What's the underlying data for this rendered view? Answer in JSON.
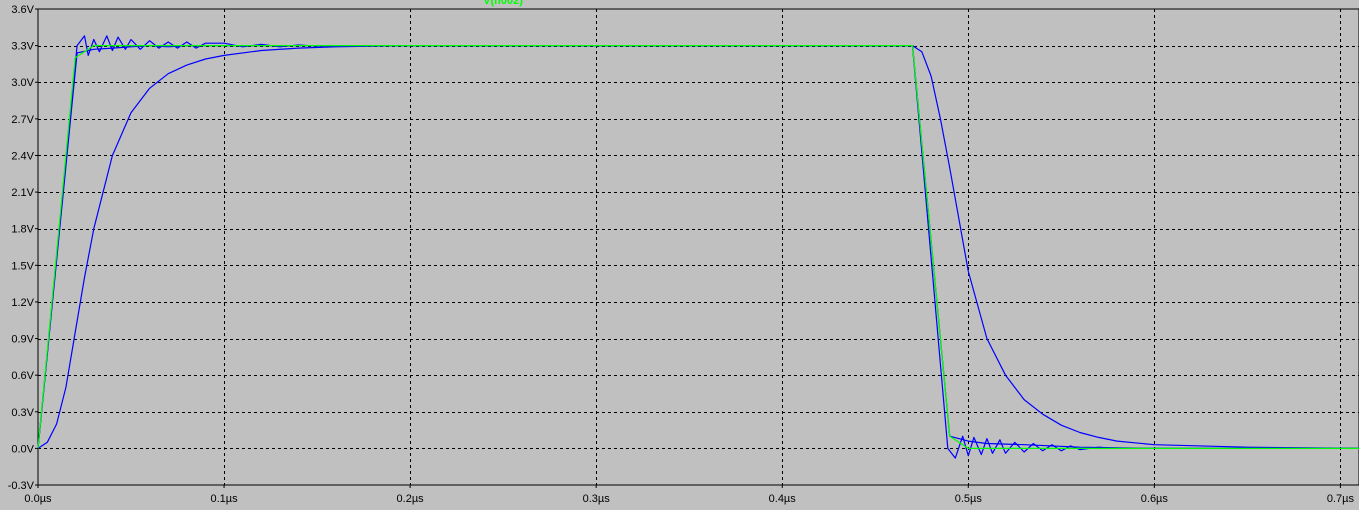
{
  "chart_data": {
    "type": "line",
    "title": "",
    "xlabel": "",
    "ylabel": "",
    "xlim": [
      0.0,
      0.71
    ],
    "ylim": [
      -0.3,
      3.6
    ],
    "grid": true,
    "x_ticks": [
      {
        "value": 0.0,
        "label": "0.0µs"
      },
      {
        "value": 0.1,
        "label": "0.1µs"
      },
      {
        "value": 0.2,
        "label": "0.2µs"
      },
      {
        "value": 0.3,
        "label": "0.3µs"
      },
      {
        "value": 0.4,
        "label": "0.4µs"
      },
      {
        "value": 0.5,
        "label": "0.5µs"
      },
      {
        "value": 0.6,
        "label": "0.6µs"
      },
      {
        "value": 0.7,
        "label": "0.7µs"
      }
    ],
    "y_ticks": [
      {
        "value": 3.6,
        "label": "3.6V"
      },
      {
        "value": 3.3,
        "label": "3.3V"
      },
      {
        "value": 3.0,
        "label": "3.0V"
      },
      {
        "value": 2.7,
        "label": "2.7V"
      },
      {
        "value": 2.4,
        "label": "2.4V"
      },
      {
        "value": 2.1,
        "label": "2.1V"
      },
      {
        "value": 1.8,
        "label": "1.8V"
      },
      {
        "value": 1.5,
        "label": "1.5V"
      },
      {
        "value": 1.2,
        "label": "1.2V"
      },
      {
        "value": 0.9,
        "label": "0.9V"
      },
      {
        "value": 0.6,
        "label": "0.6V"
      },
      {
        "value": 0.3,
        "label": "0.3V"
      },
      {
        "value": 0.0,
        "label": "0.0V"
      },
      {
        "value": -0.3,
        "label": "-0.3V"
      }
    ],
    "legend": [
      {
        "name": "V(n002)",
        "color": "#00ff00",
        "placement": "top-center"
      }
    ],
    "series": [
      {
        "name": "V(n002)",
        "color": "#00ff00",
        "x": [
          0.0,
          0.02,
          0.03,
          0.47,
          0.49,
          0.5,
          0.71
        ],
        "y": [
          0.0,
          3.2,
          3.3,
          3.3,
          0.1,
          0.0,
          0.0
        ]
      },
      {
        "name": "",
        "color": "#0000ff",
        "x": [
          0.0,
          0.021,
          0.025,
          0.027,
          0.03,
          0.033,
          0.037,
          0.04,
          0.043,
          0.047,
          0.05,
          0.055,
          0.06,
          0.065,
          0.07,
          0.075,
          0.08,
          0.085,
          0.09,
          0.1,
          0.11,
          0.12,
          0.13,
          0.14,
          0.15,
          0.17,
          0.2,
          0.47,
          0.489,
          0.493,
          0.497,
          0.5,
          0.503,
          0.507,
          0.51,
          0.513,
          0.517,
          0.52,
          0.525,
          0.53,
          0.535,
          0.54,
          0.545,
          0.55,
          0.555,
          0.56,
          0.57,
          0.58,
          0.6,
          0.65,
          0.71
        ],
        "y": [
          0.0,
          3.3,
          3.38,
          3.22,
          3.35,
          3.25,
          3.38,
          3.26,
          3.37,
          3.27,
          3.35,
          3.27,
          3.34,
          3.28,
          3.33,
          3.28,
          3.33,
          3.28,
          3.32,
          3.32,
          3.29,
          3.31,
          3.29,
          3.305,
          3.295,
          3.3,
          3.3,
          3.3,
          0.0,
          -0.08,
          0.1,
          -0.06,
          0.09,
          -0.05,
          0.08,
          -0.04,
          0.07,
          -0.04,
          0.05,
          -0.03,
          0.04,
          -0.02,
          0.03,
          -0.02,
          0.02,
          -0.01,
          0.01,
          0.0,
          0.0,
          0.0,
          0.0
        ]
      },
      {
        "name": "",
        "color": "#0000ff",
        "x": [
          0.0,
          0.021,
          0.03,
          0.04,
          0.05,
          0.06,
          0.07,
          0.08,
          0.1,
          0.12,
          0.15,
          0.2,
          0.47,
          0.49,
          0.5,
          0.51,
          0.53,
          0.56,
          0.6,
          0.71
        ],
        "y": [
          0.0,
          3.24,
          3.27,
          3.28,
          3.29,
          3.3,
          3.29,
          3.3,
          3.3,
          3.3,
          3.3,
          3.3,
          3.3,
          0.1,
          0.06,
          0.04,
          0.03,
          0.01,
          0.0,
          0.0
        ]
      },
      {
        "name": "",
        "color": "#0000ff",
        "x": [
          0.0,
          0.005,
          0.01,
          0.015,
          0.02,
          0.025,
          0.03,
          0.04,
          0.05,
          0.06,
          0.07,
          0.08,
          0.09,
          0.1,
          0.12,
          0.14,
          0.16,
          0.2,
          0.25,
          0.47,
          0.475,
          0.48,
          0.485,
          0.49,
          0.5,
          0.51,
          0.52,
          0.53,
          0.54,
          0.55,
          0.56,
          0.57,
          0.58,
          0.6,
          0.65,
          0.71
        ],
        "y": [
          0.0,
          0.05,
          0.2,
          0.5,
          0.95,
          1.4,
          1.8,
          2.4,
          2.75,
          2.95,
          3.07,
          3.14,
          3.19,
          3.22,
          3.26,
          3.28,
          3.29,
          3.3,
          3.3,
          3.3,
          3.25,
          3.05,
          2.7,
          2.3,
          1.45,
          0.9,
          0.6,
          0.4,
          0.28,
          0.19,
          0.13,
          0.09,
          0.06,
          0.03,
          0.01,
          0.0
        ]
      }
    ]
  }
}
